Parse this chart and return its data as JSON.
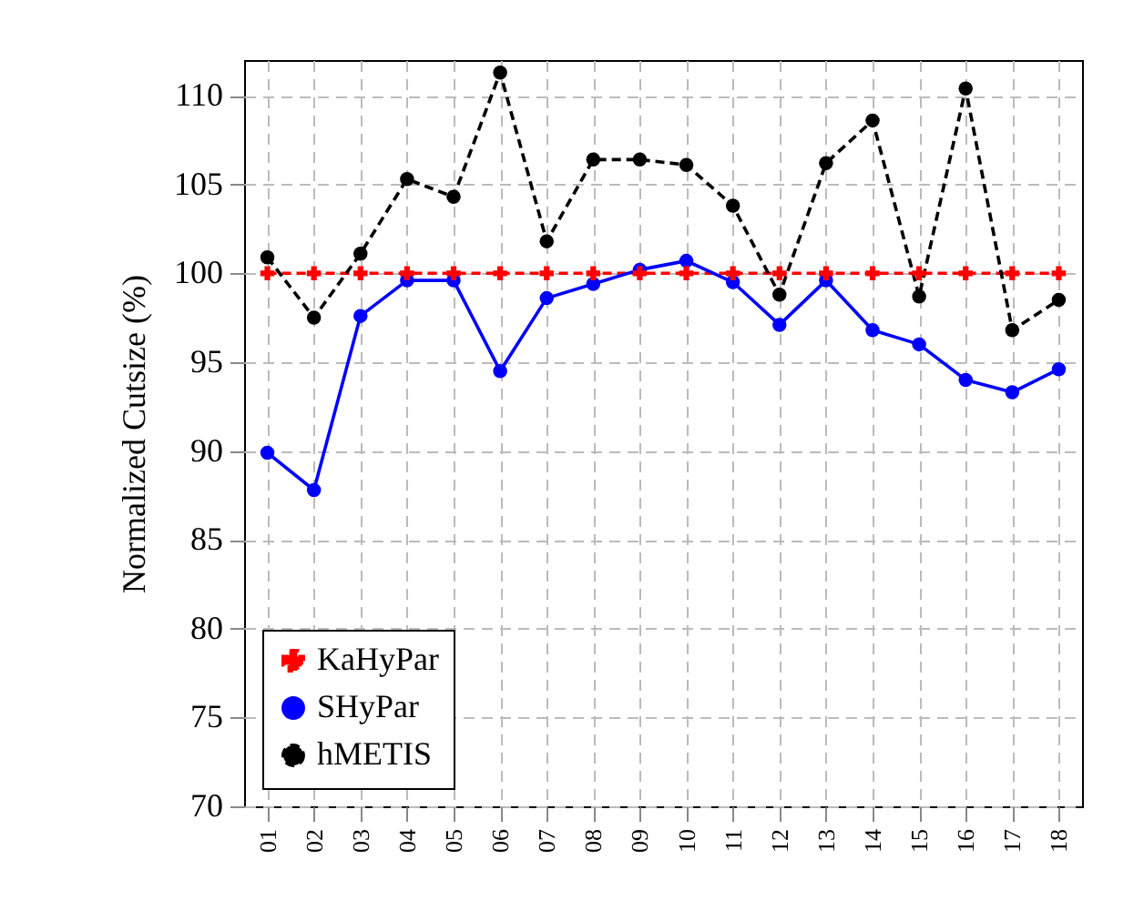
{
  "chart_data": {
    "type": "line",
    "ylabel": "Normalized Cutsize (%)",
    "categories": [
      "01",
      "02",
      "03",
      "04",
      "05",
      "06",
      "07",
      "08",
      "09",
      "10",
      "11",
      "12",
      "13",
      "14",
      "15",
      "16",
      "17",
      "18"
    ],
    "series": [
      {
        "name": "KaHyPar",
        "color": "#ff0000",
        "marker": "cross",
        "line_style": "dashed",
        "values": [
          100,
          100,
          100,
          100,
          100,
          100,
          100,
          100,
          100,
          100,
          100,
          100,
          100,
          100,
          100,
          100,
          100,
          100
        ]
      },
      {
        "name": "SHyPar",
        "color": "#0000ff",
        "marker": "circle",
        "line_style": "solid",
        "values": [
          89.9,
          87.8,
          97.6,
          99.6,
          99.6,
          94.5,
          98.6,
          99.4,
          100.2,
          100.7,
          99.5,
          97.1,
          99.6,
          96.8,
          96.0,
          94.0,
          93.3,
          94.6
        ]
      },
      {
        "name": "hMETIS",
        "color": "#000000",
        "marker": "circle",
        "line_style": "dashed",
        "values": [
          100.9,
          97.5,
          101.1,
          105.3,
          104.3,
          111.3,
          101.8,
          106.4,
          106.4,
          106.1,
          103.8,
          98.8,
          106.2,
          108.6,
          98.7,
          110.4,
          96.8,
          98.5
        ]
      }
    ],
    "ylim": [
      70,
      112
    ],
    "yticks": [
      70,
      75,
      80,
      85,
      90,
      95,
      100,
      105,
      110
    ],
    "grid": true,
    "legend": "bottom left"
  }
}
